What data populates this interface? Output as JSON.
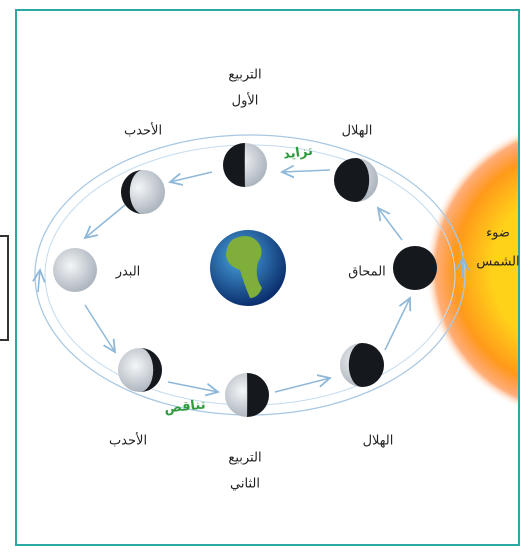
{
  "labels": {
    "first_quarter": [
      "التربيع",
      "الأول"
    ],
    "waxing_gibbous": "الأحدب",
    "waxing_crescent": "الهلال",
    "waxing": "تزايد",
    "full_moon": "البدر",
    "new_moon": "المحاق",
    "sunlight": [
      "ضوء",
      "الشمس"
    ],
    "waning_gibbous": "الأحدب",
    "waning": "تناقص",
    "third_quarter": [
      "التربيع",
      "الثاني"
    ],
    "waning_crescent": "الهلال"
  }
}
